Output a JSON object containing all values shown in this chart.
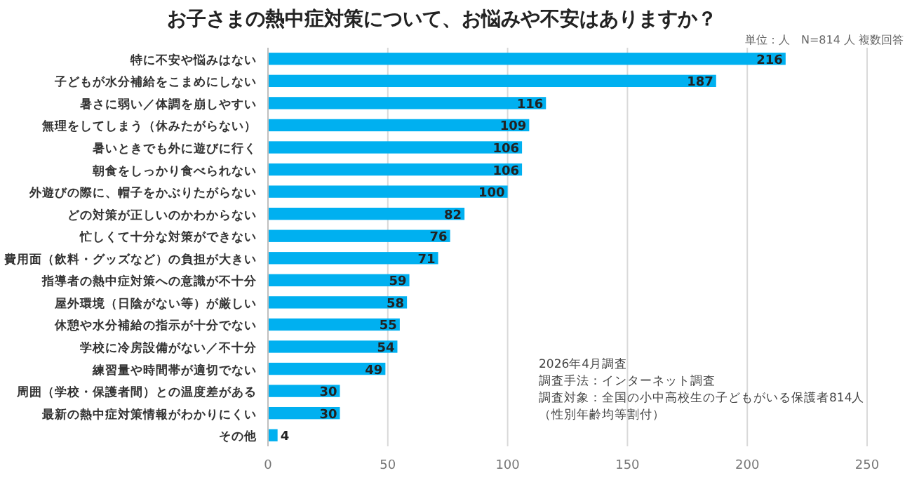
{
  "chart_data": {
    "type": "bar",
    "orientation": "horizontal",
    "title": "お子さまの熱中症対策について、お悩みや不安はありますか？",
    "subtitle": "単位：人　N=814 人 複数回答",
    "categories": [
      "特に不安や悩みはない",
      "子どもが水分補給をこまめにしない",
      "暑さに弱い／体調を崩しやすい",
      "無理をしてしまう（休みたがらない）",
      "暑いときでも外に遊びに行く",
      "朝食をしっかり食べられない",
      "外遊びの際に、帽子をかぶりたがらない",
      "どの対策が正しいのかわからない",
      "忙しくて十分な対策ができない",
      "費用面（飲料・グッズなど）の負担が大きい",
      "指導者の熱中症対策への意識が不十分",
      "屋外環境（日陰がない等）が厳しい",
      "休憩や水分補給の指示が十分でない",
      "学校に冷房設備がない／不十分",
      "練習量や時間帯が適切でない",
      "周囲（学校・保護者間）との温度差がある",
      "最新の熱中症対策情報がわかりにくい",
      "その他"
    ],
    "values": [
      216,
      187,
      116,
      109,
      106,
      106,
      100,
      82,
      76,
      71,
      59,
      58,
      55,
      54,
      49,
      30,
      30,
      4
    ],
    "color": "#00b0f0",
    "data_labels": true,
    "xlim": [
      0,
      250
    ],
    "xticks": [
      0,
      50,
      100,
      150,
      200,
      250
    ],
    "grid": "x",
    "annotations": [
      "2026年4月調査",
      "調査手法：インターネット調査",
      "調査対象：全国の小中高校生の子どもがいる保護者814人",
      "（性別年齢均等割付）"
    ]
  }
}
